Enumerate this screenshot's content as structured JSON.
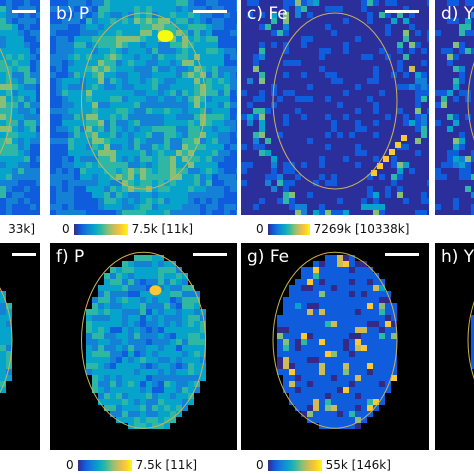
{
  "top_row": {
    "left_colorbar_max": "33k]",
    "panels": [
      {
        "label": "b) P",
        "colorbar_min": "0",
        "colorbar_max": "7.5k [11k]"
      },
      {
        "label": "c) Fe",
        "colorbar_min": "0",
        "colorbar_max": "7269k [10338k]"
      },
      {
        "label": "d) Y"
      }
    ]
  },
  "bottom_row": {
    "panels": [
      {
        "label": "f) P",
        "colorbar_min": "0",
        "colorbar_max": "7.5k [11k]"
      },
      {
        "label": "g) Fe",
        "colorbar_min": "0",
        "colorbar_max": "55k [146k]"
      },
      {
        "label": "h) Y"
      }
    ]
  }
}
